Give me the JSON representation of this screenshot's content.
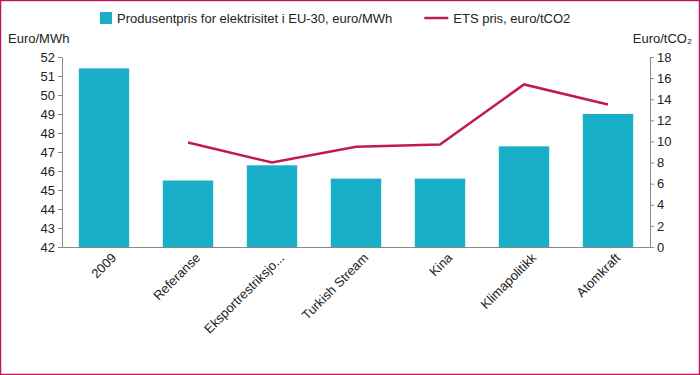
{
  "chart_data": {
    "type": "bar",
    "categories": [
      "2009",
      "Referanse",
      "Eksportrestriksjo...",
      "Turkish Stream",
      "Kina",
      "Klimapolitikk",
      "Atomkraft"
    ],
    "series": [
      {
        "name": "Produsentpris for elektrisitet i EU-30, euro/MWh",
        "type": "bar",
        "color": "#1aafc9",
        "values": [
          51.4,
          45.5,
          46.3,
          45.6,
          45.6,
          47.3,
          49.0
        ]
      },
      {
        "name": "ETS pris, euro/tCO2",
        "type": "line",
        "color": "#c0185c",
        "axis": "y2",
        "values": [
          null,
          9.9,
          8.0,
          9.5,
          9.7,
          15.4,
          13.5
        ]
      }
    ],
    "y_label": "Euro/MWh",
    "y2_label": "Euro/tCO₂",
    "ylim": [
      42,
      52
    ],
    "yticks": [
      42,
      43,
      44,
      45,
      46,
      47,
      48,
      49,
      50,
      51,
      52
    ],
    "y2lim": [
      0,
      18
    ],
    "y2ticks": [
      0,
      2,
      4,
      6,
      8,
      10,
      12,
      14,
      16,
      18
    ],
    "legend": "top",
    "grid": false
  }
}
